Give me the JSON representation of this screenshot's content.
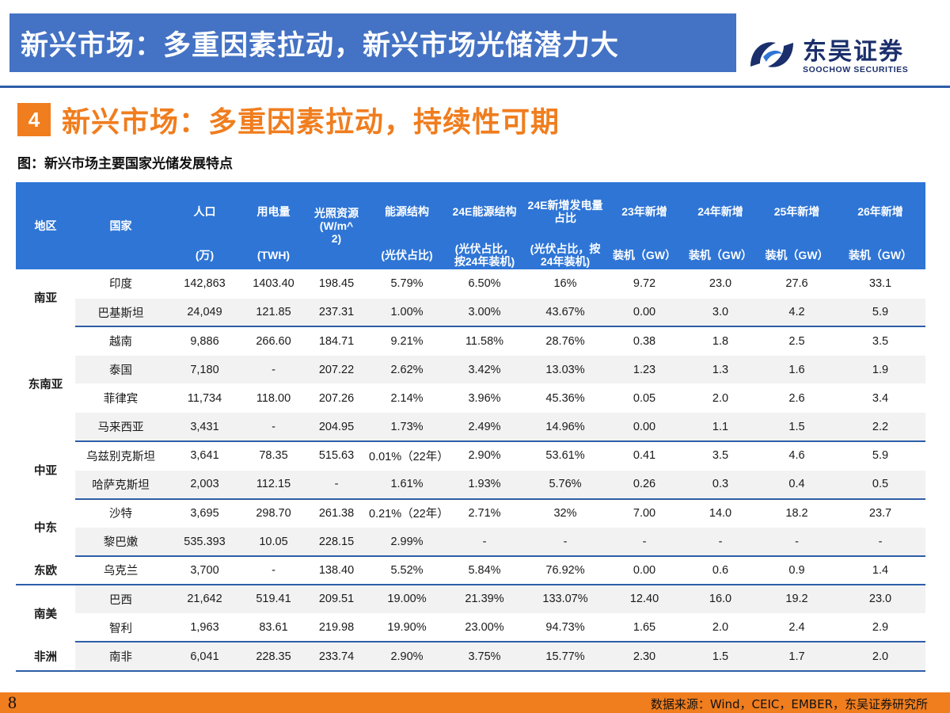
{
  "page_title": "新兴市场：多重因素拉动，新兴市场光储潜力大",
  "logo": {
    "name": "东吴证券",
    "english": "SOOCHOW SECURITIES"
  },
  "section": {
    "number": "4",
    "title": "新兴市场：多重因素拉动，持续性可期"
  },
  "figure_caption": "图：新兴市场主要国家光储发展特点",
  "table": {
    "headers": [
      {
        "top": "地区",
        "bottom": ""
      },
      {
        "top": "国家",
        "bottom": ""
      },
      {
        "top": "人口",
        "bottom": "(万)"
      },
      {
        "top": "用电量",
        "bottom": "(TWH)"
      },
      {
        "top": "光照资源\n(W/m^\n2)",
        "bottom": ""
      },
      {
        "top": "能源结构",
        "bottom": "(光伏占比)"
      },
      {
        "top": "24E能源结构",
        "bottom": "(光伏占比，\n按24年装机)"
      },
      {
        "top": "24E新增发电量\n占比",
        "bottom": "(光伏占比，按\n24年装机)"
      },
      {
        "top": "23年新增",
        "bottom": "装机（GW）"
      },
      {
        "top": "24年新增",
        "bottom": "装机（GW）"
      },
      {
        "top": "25年新增",
        "bottom": "装机（GW）"
      },
      {
        "top": "26年新增",
        "bottom": "装机（GW）"
      }
    ],
    "groups": [
      {
        "region": "南亚",
        "rows": [
          [
            "印度",
            "142,863",
            "1403.40",
            "198.45",
            "5.79%",
            "6.50%",
            "16%",
            "9.72",
            "23.0",
            "27.6",
            "33.1"
          ],
          [
            "巴基斯坦",
            "24,049",
            "121.85",
            "237.31",
            "1.00%",
            "3.00%",
            "43.67%",
            "0.00",
            "3.0",
            "4.2",
            "5.9"
          ]
        ]
      },
      {
        "region": "东南亚",
        "rows": [
          [
            "越南",
            "9,886",
            "266.60",
            "184.71",
            "9.21%",
            "11.58%",
            "28.76%",
            "0.38",
            "1.8",
            "2.5",
            "3.5"
          ],
          [
            "泰国",
            "7,180",
            "-",
            "207.22",
            "2.62%",
            "3.42%",
            "13.03%",
            "1.23",
            "1.3",
            "1.6",
            "1.9"
          ],
          [
            "菲律宾",
            "11,734",
            "118.00",
            "207.26",
            "2.14%",
            "3.96%",
            "45.36%",
            "0.05",
            "2.0",
            "2.6",
            "3.4"
          ],
          [
            "马来西亚",
            "3,431",
            "-",
            "204.95",
            "1.73%",
            "2.49%",
            "14.96%",
            "0.00",
            "1.1",
            "1.5",
            "2.2"
          ]
        ]
      },
      {
        "region": "中亚",
        "rows": [
          [
            "乌兹别克斯坦",
            "3,641",
            "78.35",
            "515.63",
            "0.01%（22年）",
            "2.90%",
            "53.61%",
            "0.41",
            "3.5",
            "4.6",
            "5.9"
          ],
          [
            "哈萨克斯坦",
            "2,003",
            "112.15",
            "-",
            "1.61%",
            "1.93%",
            "5.76%",
            "0.26",
            "0.3",
            "0.4",
            "0.5"
          ]
        ]
      },
      {
        "region": "中东",
        "rows": [
          [
            "沙特",
            "3,695",
            "298.70",
            "261.38",
            "0.21%（22年）",
            "2.71%",
            "32%",
            "7.00",
            "14.0",
            "18.2",
            "23.7"
          ],
          [
            "黎巴嫩",
            "535.393",
            "10.05",
            "228.15",
            "2.99%",
            "-",
            "-",
            "-",
            "-",
            "-",
            "-"
          ]
        ]
      },
      {
        "region": "东欧",
        "rows": [
          [
            "乌克兰",
            "3,700",
            "-",
            "138.40",
            "5.52%",
            "5.84%",
            "76.92%",
            "0.00",
            "0.6",
            "0.9",
            "1.4"
          ]
        ]
      },
      {
        "region": "南美",
        "rows": [
          [
            "巴西",
            "21,642",
            "519.41",
            "209.51",
            "19.00%",
            "21.39%",
            "133.07%",
            "12.40",
            "16.0",
            "19.2",
            "23.0"
          ],
          [
            "智利",
            "1,963",
            "83.61",
            "219.98",
            "19.90%",
            "23.00%",
            "94.73%",
            "1.65",
            "2.0",
            "2.4",
            "2.9"
          ]
        ]
      },
      {
        "region": "非洲",
        "rows": [
          [
            "南非",
            "6,041",
            "228.35",
            "233.74",
            "2.90%",
            "3.75%",
            "15.77%",
            "2.30",
            "1.5",
            "1.7",
            "2.0"
          ]
        ]
      }
    ]
  },
  "footer": {
    "page_number": "8",
    "source": "数据来源：Wind，CEIC，EMBER，东吴证券研究所"
  },
  "colors": {
    "banner": "#4472c4",
    "header": "#2e75d6",
    "accent": "#f07d1e",
    "rule": "#2e5ea8"
  }
}
